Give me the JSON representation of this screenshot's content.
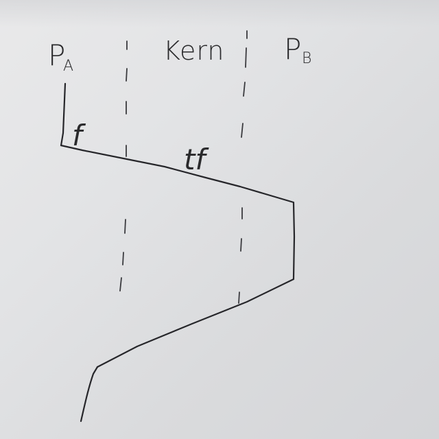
{
  "lanes": {
    "left": {
      "main": "P",
      "sub": "A"
    },
    "middle": {
      "label": "Kern"
    },
    "right": {
      "main": "P",
      "sub": "B"
    }
  },
  "messages": {
    "first": "f",
    "second": "tf"
  },
  "colors": {
    "paper": "#e3e4e6",
    "ink": "#26262a"
  }
}
